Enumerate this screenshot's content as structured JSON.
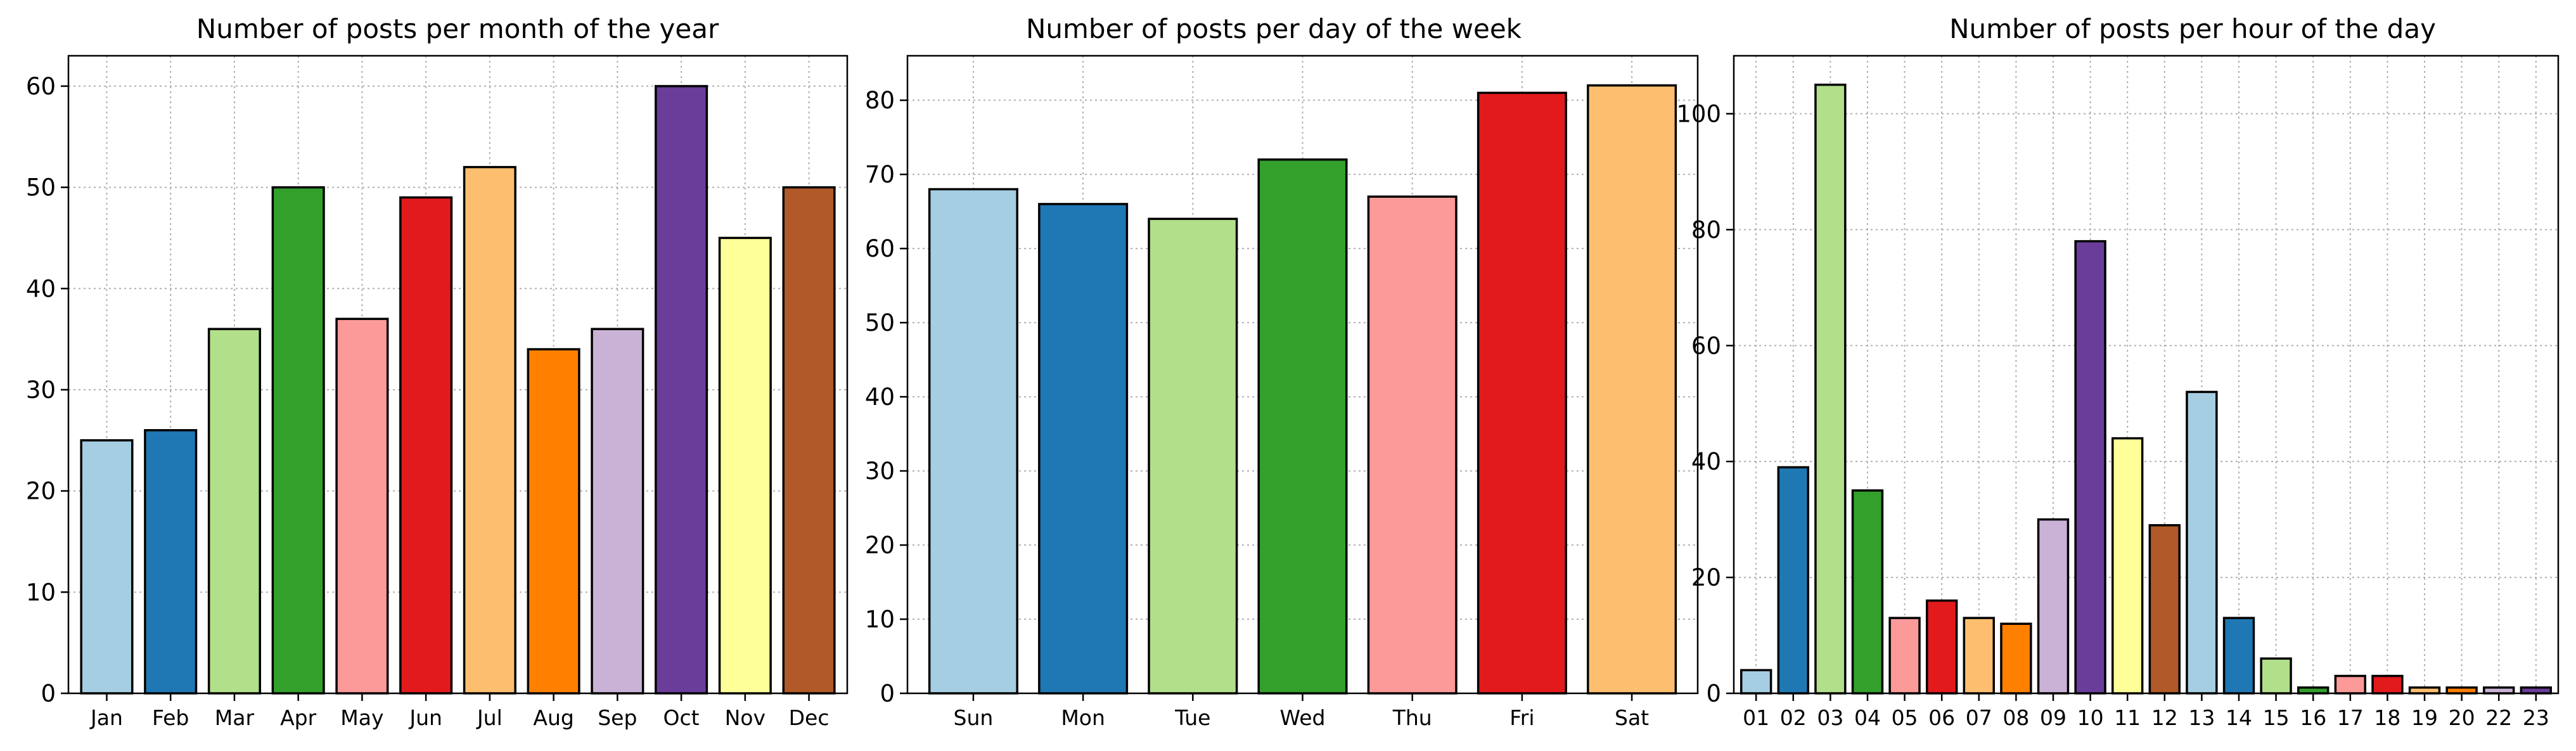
{
  "chart_data": [
    {
      "type": "bar",
      "title": "Number of posts per month of the year",
      "xlabel": "",
      "ylabel": "",
      "categories": [
        "Jan",
        "Feb",
        "Mar",
        "Apr",
        "May",
        "Jun",
        "Jul",
        "Aug",
        "Sep",
        "Oct",
        "Nov",
        "Dec"
      ],
      "values": [
        25,
        26,
        36,
        50,
        37,
        49,
        52,
        34,
        36,
        60,
        45,
        50
      ],
      "ylim": [
        0,
        63
      ],
      "yticks": [
        0,
        10,
        20,
        30,
        40,
        50,
        60
      ],
      "grid": true,
      "colors": [
        "#a6cee3",
        "#1f78b4",
        "#b2df8a",
        "#33a02c",
        "#fb9a99",
        "#e31a1c",
        "#fdbf6f",
        "#ff7f00",
        "#cab2d6",
        "#6a3d9a",
        "#ffff99",
        "#b15928"
      ]
    },
    {
      "type": "bar",
      "title": "Number of posts per day of the week",
      "xlabel": "",
      "ylabel": "",
      "categories": [
        "Sun",
        "Mon",
        "Tue",
        "Wed",
        "Thu",
        "Fri",
        "Sat"
      ],
      "values": [
        68,
        66,
        64,
        72,
        67,
        81,
        82
      ],
      "ylim": [
        0,
        86
      ],
      "yticks": [
        0,
        10,
        20,
        30,
        40,
        50,
        60,
        70,
        80
      ],
      "grid": true,
      "colors": [
        "#a6cee3",
        "#1f78b4",
        "#b2df8a",
        "#33a02c",
        "#fb9a99",
        "#e31a1c",
        "#fdbf6f"
      ]
    },
    {
      "type": "bar",
      "title": "Number of posts per hour of the day",
      "xlabel": "",
      "ylabel": "",
      "categories": [
        "01",
        "02",
        "03",
        "04",
        "05",
        "06",
        "07",
        "08",
        "09",
        "10",
        "11",
        "12",
        "13",
        "14",
        "15",
        "16",
        "17",
        "18",
        "19",
        "20",
        "22",
        "23"
      ],
      "values": [
        4,
        39,
        105,
        35,
        13,
        16,
        13,
        12,
        30,
        78,
        44,
        29,
        52,
        13,
        6,
        1,
        3,
        3,
        1,
        1,
        1,
        1
      ],
      "ylim": [
        0,
        110
      ],
      "yticks": [
        0,
        20,
        40,
        60,
        80,
        100
      ],
      "grid": true,
      "colors": [
        "#a6cee3",
        "#1f78b4",
        "#b2df8a",
        "#33a02c",
        "#fb9a99",
        "#e31a1c",
        "#fdbf6f",
        "#ff7f00",
        "#cab2d6",
        "#6a3d9a",
        "#ffff99",
        "#b15928",
        "#a6cee3",
        "#1f78b4",
        "#b2df8a",
        "#33a02c",
        "#fb9a99",
        "#e31a1c",
        "#fdbf6f",
        "#ff7f00",
        "#cab2d6",
        "#6a3d9a"
      ]
    }
  ]
}
